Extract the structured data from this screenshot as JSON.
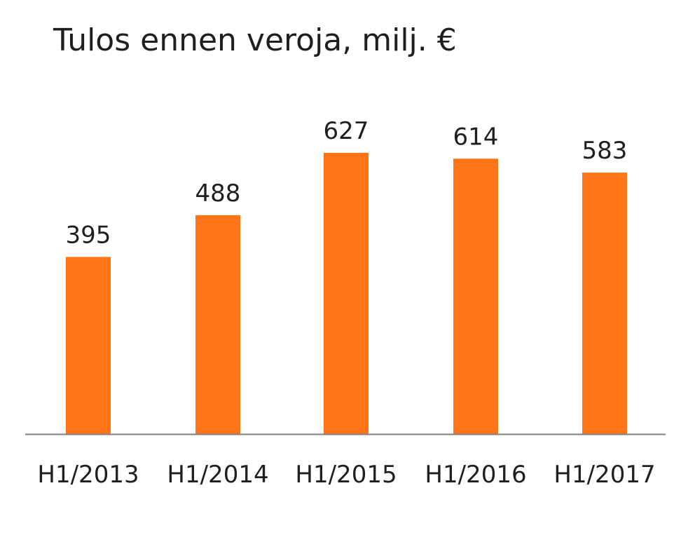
{
  "chart_data": {
    "type": "bar",
    "title": "Tulos ennen veroja, milj. €",
    "xlabel": "",
    "ylabel": "",
    "categories": [
      "H1/2013",
      "H1/2014",
      "H1/2015",
      "H1/2016",
      "H1/2017"
    ],
    "values": [
      395,
      488,
      627,
      614,
      583
    ],
    "data_labels": [
      "395",
      "488",
      "627",
      "614",
      "583"
    ],
    "ylim": [
      0,
      627
    ],
    "grid": false,
    "legend": "none",
    "colors": {
      "bar": "#ff7518",
      "axis": "#7f7f7f",
      "text": "#1f1f1f"
    }
  }
}
